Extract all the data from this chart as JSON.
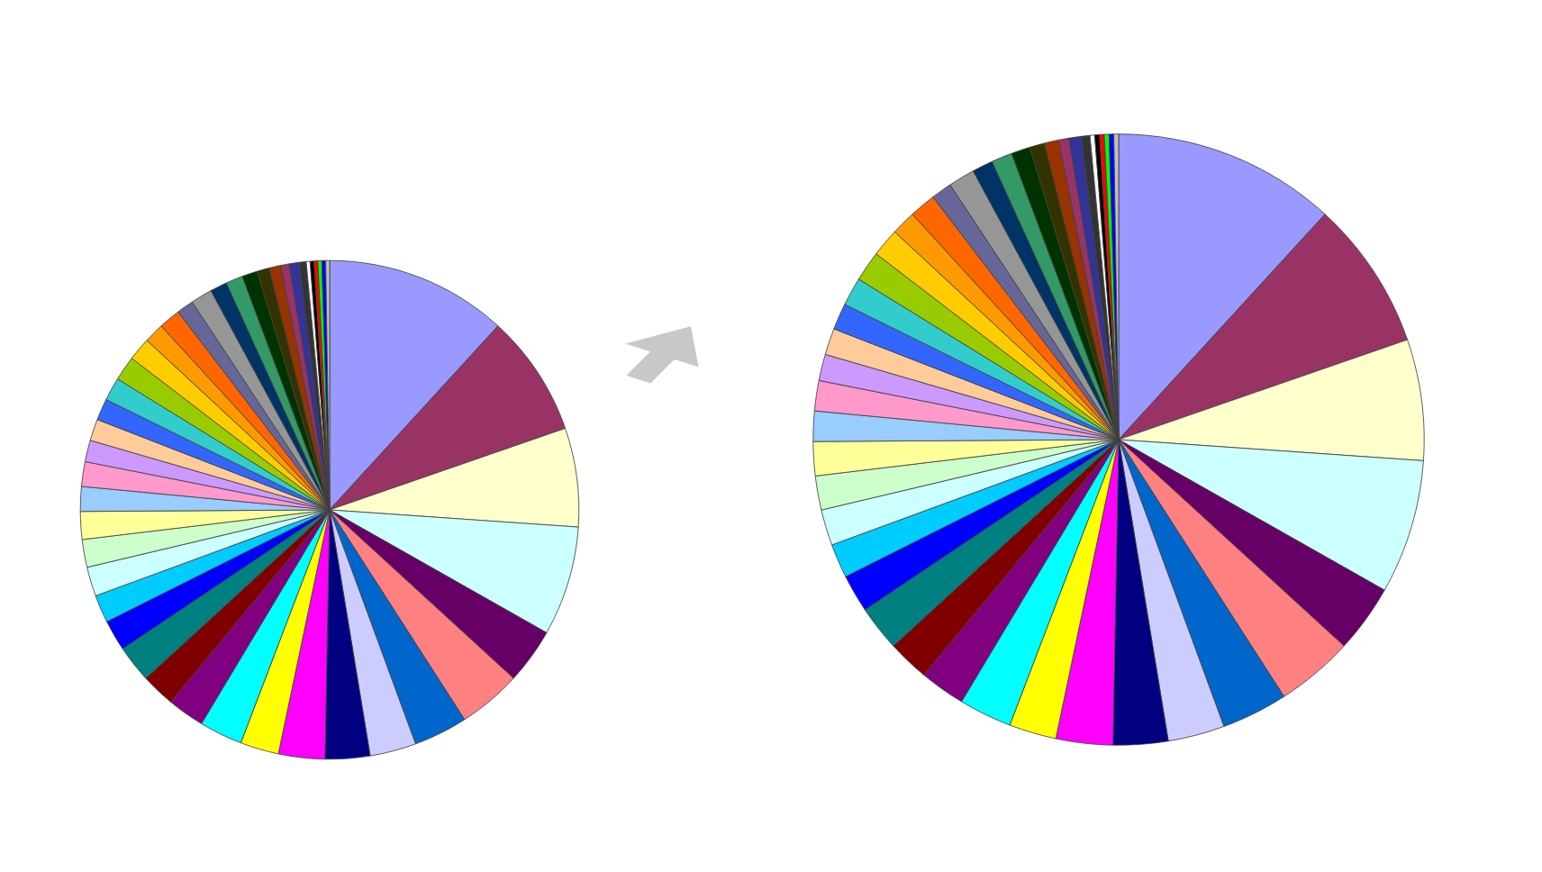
{
  "chart_data": [
    {
      "type": "pie",
      "categories": [
        null,
        null,
        null,
        null,
        null,
        null,
        null,
        null,
        null,
        null,
        null,
        null,
        null,
        null,
        null,
        null,
        null,
        null,
        null,
        null,
        null,
        null,
        null,
        null,
        null,
        null,
        null,
        null,
        null,
        null,
        null,
        null,
        null,
        null,
        null,
        null,
        null,
        null,
        null,
        null,
        null,
        null,
        null,
        null,
        null,
        null
      ],
      "values": [
        11.8,
        7.9,
        6.4,
        7.1,
        3.6,
        4.1,
        3.5,
        3.0,
        2.9,
        3.0,
        2.5,
        2.8,
        2.4,
        2.2,
        2.4,
        2.0,
        1.8,
        1.9,
        1.8,
        1.8,
        1.6,
        1.6,
        1.4,
        1.4,
        1.4,
        1.5,
        1.6,
        1.5,
        1.3,
        1.4,
        1.1,
        1.4,
        1.1,
        1.1,
        1.0,
        0.8,
        0.75,
        0.55,
        0.65,
        0.45,
        0.25,
        0.25,
        0.25,
        0.25,
        0.25,
        0.25
      ],
      "colors": [
        "#9999ff",
        "#993366",
        "#ffffcc",
        "#ccffff",
        "#660066",
        "#ff8080",
        "#0066cc",
        "#ccccff",
        "#000080",
        "#ff00ff",
        "#ffff00",
        "#00ffff",
        "#800080",
        "#800000",
        "#008080",
        "#0000ff",
        "#00ccff",
        "#ccffff",
        "#ccffcc",
        "#ffff99",
        "#99ccff",
        "#ff99cc",
        "#cc99ff",
        "#ffcc99",
        "#3366ff",
        "#33cccc",
        "#99cc00",
        "#ffcc00",
        "#ff9900",
        "#ff6600",
        "#666699",
        "#969696",
        "#003366",
        "#339966",
        "#003300",
        "#333300",
        "#993300",
        "#993366",
        "#333399",
        "#333333",
        "#ffffff",
        "#000000",
        "#ff0000",
        "#00ff00",
        "#0000ff",
        "#c0c0c0"
      ]
    },
    {
      "type": "pie",
      "categories": [
        null,
        null,
        null,
        null,
        null,
        null,
        null,
        null,
        null,
        null,
        null,
        null,
        null,
        null,
        null,
        null,
        null,
        null,
        null,
        null,
        null,
        null,
        null,
        null,
        null,
        null,
        null,
        null,
        null,
        null,
        null,
        null,
        null,
        null,
        null,
        null,
        null,
        null,
        null,
        null,
        null,
        null,
        null,
        null,
        null,
        null
      ],
      "values": [
        11.8,
        7.9,
        6.4,
        7.1,
        3.6,
        4.1,
        3.5,
        3.0,
        2.9,
        3.0,
        2.5,
        2.8,
        2.4,
        2.2,
        2.4,
        2.0,
        1.8,
        1.9,
        1.8,
        1.8,
        1.6,
        1.6,
        1.4,
        1.4,
        1.4,
        1.5,
        1.6,
        1.5,
        1.3,
        1.4,
        1.1,
        1.4,
        1.1,
        1.1,
        1.0,
        0.8,
        0.75,
        0.55,
        0.65,
        0.45,
        0.25,
        0.25,
        0.25,
        0.25,
        0.25,
        0.25
      ],
      "colors": [
        "#9999ff",
        "#993366",
        "#ffffcc",
        "#ccffff",
        "#660066",
        "#ff8080",
        "#0066cc",
        "#ccccff",
        "#000080",
        "#ff00ff",
        "#ffff00",
        "#00ffff",
        "#800080",
        "#800000",
        "#008080",
        "#0000ff",
        "#00ccff",
        "#ccffff",
        "#ccffcc",
        "#ffff99",
        "#99ccff",
        "#ff99cc",
        "#cc99ff",
        "#ffcc99",
        "#3366ff",
        "#33cccc",
        "#99cc00",
        "#ffcc00",
        "#ff9900",
        "#ff6600",
        "#666699",
        "#969696",
        "#003366",
        "#339966",
        "#003300",
        "#333300",
        "#993300",
        "#993366",
        "#333399",
        "#333333",
        "#ffffff",
        "#000000",
        "#ff0000",
        "#00ff00",
        "#0000ff",
        "#c0c0c0"
      ]
    }
  ]
}
